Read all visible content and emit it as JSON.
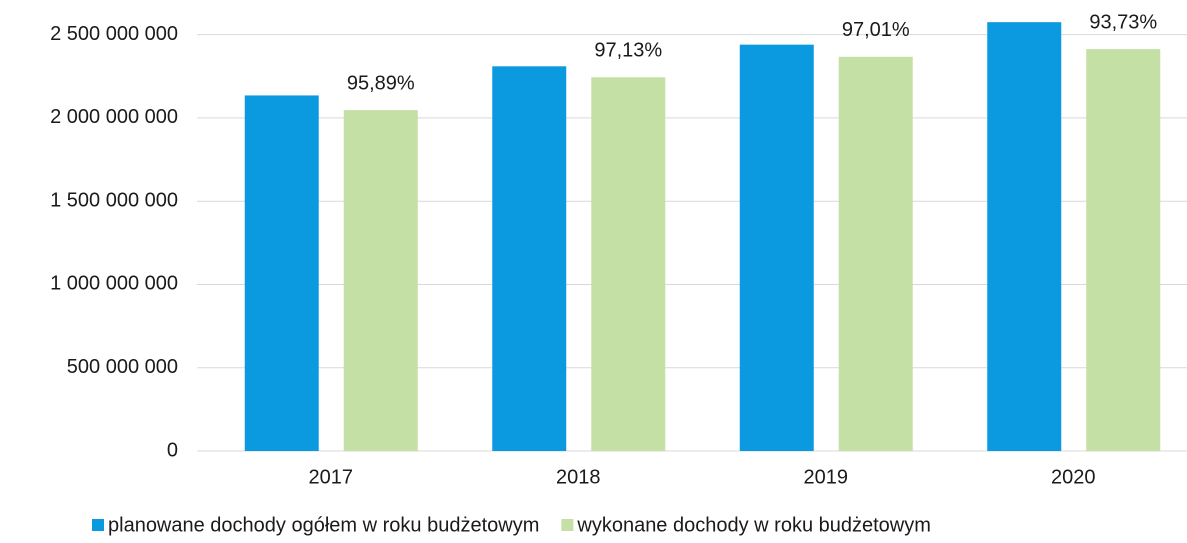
{
  "chart_data": {
    "type": "bar",
    "categories": [
      "2017",
      "2018",
      "2019",
      "2020"
    ],
    "series": [
      {
        "name": "planowane dochody ogółem w roku budżetowym",
        "color": "#0b9ae0",
        "values": [
          2135000000,
          2310000000,
          2440000000,
          2575000000
        ]
      },
      {
        "name": "wykonane dochody w roku budżetowym",
        "color": "#c5e0a5",
        "values": [
          2047000000,
          2244000000,
          2367000000,
          2413000000
        ]
      }
    ],
    "annotations": [
      "95,89%",
      "97,13%",
      "97,01%",
      "93,73%"
    ],
    "ylim": [
      0,
      2600000000
    ],
    "yticks": [
      0,
      {
        "value": 500000000,
        "label": "500 000 000"
      },
      {
        "value": 1000000000,
        "label": "1 000 000 000"
      },
      {
        "value": 1500000000,
        "label": "1 500 000 000"
      },
      {
        "value": 2000000000,
        "label": "2 000 000 000"
      },
      {
        "value": 2500000000,
        "label": "2 500 000 000"
      }
    ],
    "grid": true,
    "legend": "bottom"
  }
}
